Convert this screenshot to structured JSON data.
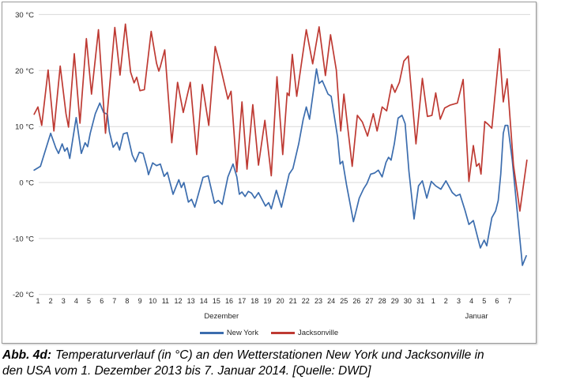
{
  "colors": {
    "gridline": "#d9d9d9",
    "axis_text": "#262626",
    "border": "#9b9b9b",
    "background": "#ffffff"
  },
  "figure": {
    "caption": {
      "prefix": "Abb. 4d:",
      "line1": "Temperaturverlauf (in °C) an den Wetterstationen New York und Jacksonville in",
      "line2": "den USA vom 1. Dezember 2013 bis 7. Januar 2014. [Quelle: DWD]"
    }
  },
  "chart_data": {
    "type": "line",
    "title": "",
    "xlabel": "",
    "ylabel": "",
    "grid": "horizontal",
    "legend_position": "bottom-center",
    "y_axis": {
      "range": [
        -20,
        30
      ],
      "ticks": [
        {
          "value": 30,
          "label": "30 °C"
        },
        {
          "value": 20,
          "label": "20 °C"
        },
        {
          "value": 10,
          "label": "10 °C"
        },
        {
          "value": 0,
          "label": "0 °C"
        },
        {
          "value": -10,
          "label": "-10 °C"
        },
        {
          "value": -20,
          "label": "-20 °C"
        }
      ]
    },
    "x_axis": {
      "unit": "day",
      "tick_labels": [
        "1",
        "2",
        "3",
        "4",
        "5",
        "6",
        "7",
        "8",
        "9",
        "10",
        "11",
        "12",
        "13",
        "14",
        "15",
        "16",
        "17",
        "18",
        "19",
        "20",
        "21",
        "22",
        "23",
        "24",
        "25",
        "26",
        "27",
        "28",
        "29",
        "30",
        "31",
        "1",
        "2",
        "3",
        "4",
        "5",
        "6",
        "7"
      ],
      "month_labels": [
        {
          "label": "Dezember",
          "day": 15.4
        },
        {
          "label": "Januar",
          "day": 35.4
        }
      ]
    },
    "series": [
      {
        "name": "New York",
        "color": "#3c6dae",
        "points": [
          [
            0.7,
            2.2
          ],
          [
            1.2,
            2.9
          ],
          [
            2.0,
            8.8
          ],
          [
            2.4,
            6.2
          ],
          [
            2.62,
            5.2
          ],
          [
            2.9,
            6.9
          ],
          [
            3.1,
            5.6
          ],
          [
            3.3,
            6.2
          ],
          [
            3.5,
            4.3
          ],
          [
            4.0,
            11.6
          ],
          [
            4.4,
            5.2
          ],
          [
            4.7,
            7.1
          ],
          [
            4.9,
            6.4
          ],
          [
            5.1,
            8.8
          ],
          [
            5.5,
            12.3
          ],
          [
            5.85,
            14.2
          ],
          [
            6.15,
            12.5
          ],
          [
            6.45,
            12.2
          ],
          [
            6.6,
            9.1
          ],
          [
            6.9,
            6.3
          ],
          [
            7.2,
            7.2
          ],
          [
            7.4,
            5.8
          ],
          [
            7.7,
            8.7
          ],
          [
            8.0,
            8.9
          ],
          [
            8.4,
            4.9
          ],
          [
            8.65,
            3.7
          ],
          [
            8.95,
            5.4
          ],
          [
            9.25,
            5.2
          ],
          [
            9.57,
            2.5
          ],
          [
            9.67,
            1.4
          ],
          [
            10.0,
            3.5
          ],
          [
            10.3,
            3.0
          ],
          [
            10.6,
            3.3
          ],
          [
            10.9,
            1.1
          ],
          [
            11.15,
            1.8
          ],
          [
            11.6,
            -2.1
          ],
          [
            12.05,
            0.5
          ],
          [
            12.25,
            -0.9
          ],
          [
            12.45,
            0.0
          ],
          [
            12.8,
            -3.5
          ],
          [
            13.05,
            -3.0
          ],
          [
            13.3,
            -4.4
          ],
          [
            13.95,
            0.9
          ],
          [
            14.35,
            1.2
          ],
          [
            14.85,
            -3.7
          ],
          [
            15.15,
            -3.2
          ],
          [
            15.45,
            -3.9
          ],
          [
            15.9,
            1.0
          ],
          [
            16.3,
            3.3
          ],
          [
            16.6,
            1.0
          ],
          [
            16.8,
            -2.1
          ],
          [
            17.0,
            -1.7
          ],
          [
            17.25,
            -2.5
          ],
          [
            17.5,
            -1.6
          ],
          [
            17.75,
            -1.9
          ],
          [
            18.0,
            -2.8
          ],
          [
            18.3,
            -1.8
          ],
          [
            18.85,
            -4.2
          ],
          [
            19.1,
            -3.6
          ],
          [
            19.3,
            -4.7
          ],
          [
            19.7,
            -1.4
          ],
          [
            20.1,
            -4.4
          ],
          [
            20.7,
            1.5
          ],
          [
            21.0,
            2.5
          ],
          [
            21.45,
            6.9
          ],
          [
            21.8,
            11.2
          ],
          [
            22.05,
            13.5
          ],
          [
            22.3,
            11.3
          ],
          [
            22.85,
            20.3
          ],
          [
            23.05,
            17.7
          ],
          [
            23.3,
            18.2
          ],
          [
            23.75,
            15.8
          ],
          [
            24.0,
            15.4
          ],
          [
            24.5,
            8.1
          ],
          [
            24.7,
            3.3
          ],
          [
            24.9,
            3.8
          ],
          [
            25.2,
            -0.4
          ],
          [
            25.75,
            -7.0
          ],
          [
            26.2,
            -2.8
          ],
          [
            26.55,
            -1.1
          ],
          [
            26.8,
            -0.2
          ],
          [
            27.1,
            1.5
          ],
          [
            27.4,
            1.7
          ],
          [
            27.7,
            2.2
          ],
          [
            28.0,
            1.0
          ],
          [
            28.3,
            3.6
          ],
          [
            28.5,
            4.5
          ],
          [
            28.7,
            4.0
          ],
          [
            28.95,
            6.9
          ],
          [
            29.25,
            11.5
          ],
          [
            29.55,
            12.0
          ],
          [
            29.8,
            10.5
          ],
          [
            30.1,
            2.0
          ],
          [
            30.5,
            -6.5
          ],
          [
            30.85,
            -0.6
          ],
          [
            31.15,
            0.3
          ],
          [
            31.5,
            -2.8
          ],
          [
            31.85,
            0.2
          ],
          [
            32.2,
            -0.6
          ],
          [
            32.6,
            -1.2
          ],
          [
            33.0,
            0.3
          ],
          [
            33.5,
            -1.8
          ],
          [
            33.8,
            -2.4
          ],
          [
            34.1,
            -2.1
          ],
          [
            34.5,
            -5.0
          ],
          [
            34.8,
            -7.5
          ],
          [
            35.15,
            -6.8
          ],
          [
            35.7,
            -11.7
          ],
          [
            36.0,
            -10.3
          ],
          [
            36.2,
            -11.3
          ],
          [
            36.6,
            -6.3
          ],
          [
            36.9,
            -5.1
          ],
          [
            37.1,
            -3.2
          ],
          [
            37.3,
            1.5
          ],
          [
            37.5,
            8.8
          ],
          [
            37.65,
            10.2
          ],
          [
            37.85,
            10.2
          ],
          [
            38.2,
            4.1
          ],
          [
            39.0,
            -14.8
          ],
          [
            39.3,
            -13.1
          ]
        ]
      },
      {
        "name": "Jacksonville",
        "color": "#be3a33",
        "points": [
          [
            0.7,
            12.2
          ],
          [
            1.0,
            13.5
          ],
          [
            1.3,
            10.2
          ],
          [
            1.8,
            20.1
          ],
          [
            2.25,
            9.2
          ],
          [
            2.75,
            20.8
          ],
          [
            3.2,
            12.3
          ],
          [
            3.4,
            9.9
          ],
          [
            3.85,
            23.0
          ],
          [
            4.3,
            10.6
          ],
          [
            4.8,
            25.7
          ],
          [
            5.2,
            15.8
          ],
          [
            5.75,
            27.3
          ],
          [
            6.3,
            8.8
          ],
          [
            7.03,
            27.7
          ],
          [
            7.44,
            19.2
          ],
          [
            7.86,
            28.3
          ],
          [
            8.27,
            19.7
          ],
          [
            8.54,
            17.8
          ],
          [
            8.75,
            18.8
          ],
          [
            9.0,
            16.4
          ],
          [
            9.35,
            16.6
          ],
          [
            9.88,
            27.0
          ],
          [
            10.3,
            21.3
          ],
          [
            10.48,
            19.9
          ],
          [
            10.6,
            20.7
          ],
          [
            10.95,
            23.7
          ],
          [
            11.5,
            7.1
          ],
          [
            11.95,
            17.9
          ],
          [
            12.4,
            12.5
          ],
          [
            12.95,
            17.9
          ],
          [
            13.45,
            5.0
          ],
          [
            13.9,
            17.5
          ],
          [
            14.4,
            10.2
          ],
          [
            14.9,
            24.3
          ],
          [
            15.25,
            21.3
          ],
          [
            15.9,
            14.9
          ],
          [
            16.15,
            16.3
          ],
          [
            16.6,
            1.9
          ],
          [
            17.0,
            14.4
          ],
          [
            17.4,
            2.4
          ],
          [
            17.85,
            13.9
          ],
          [
            18.3,
            3.1
          ],
          [
            18.8,
            11.1
          ],
          [
            19.3,
            1.2
          ],
          [
            19.75,
            18.9
          ],
          [
            20.2,
            5.0
          ],
          [
            20.55,
            16.0
          ],
          [
            20.7,
            15.5
          ],
          [
            20.95,
            22.9
          ],
          [
            21.3,
            15.4
          ],
          [
            22.05,
            27.3
          ],
          [
            22.55,
            21.2
          ],
          [
            23.05,
            27.8
          ],
          [
            23.55,
            19.1
          ],
          [
            23.95,
            26.4
          ],
          [
            24.4,
            20.1
          ],
          [
            24.75,
            9.2
          ],
          [
            25.0,
            15.8
          ],
          [
            25.65,
            2.9
          ],
          [
            26.05,
            12.0
          ],
          [
            26.45,
            10.8
          ],
          [
            26.85,
            8.3
          ],
          [
            27.3,
            12.3
          ],
          [
            27.6,
            9.2
          ],
          [
            28.0,
            13.5
          ],
          [
            28.35,
            12.8
          ],
          [
            28.75,
            17.5
          ],
          [
            29.0,
            16.1
          ],
          [
            29.35,
            17.9
          ],
          [
            29.7,
            21.7
          ],
          [
            30.05,
            22.6
          ],
          [
            30.65,
            6.9
          ],
          [
            31.15,
            18.6
          ],
          [
            31.55,
            11.8
          ],
          [
            31.9,
            12.0
          ],
          [
            32.2,
            16.0
          ],
          [
            32.55,
            11.3
          ],
          [
            32.9,
            13.3
          ],
          [
            33.3,
            13.8
          ],
          [
            33.9,
            14.2
          ],
          [
            34.35,
            18.4
          ],
          [
            34.8,
            0.2
          ],
          [
            35.15,
            6.6
          ],
          [
            35.4,
            2.9
          ],
          [
            35.6,
            3.4
          ],
          [
            35.75,
            1.5
          ],
          [
            36.05,
            10.9
          ],
          [
            36.3,
            10.4
          ],
          [
            36.6,
            9.7
          ],
          [
            37.2,
            23.9
          ],
          [
            37.5,
            14.4
          ],
          [
            37.8,
            18.5
          ],
          [
            38.3,
            3.1
          ],
          [
            38.8,
            -5.1
          ],
          [
            39.35,
            4.0
          ]
        ]
      }
    ]
  }
}
